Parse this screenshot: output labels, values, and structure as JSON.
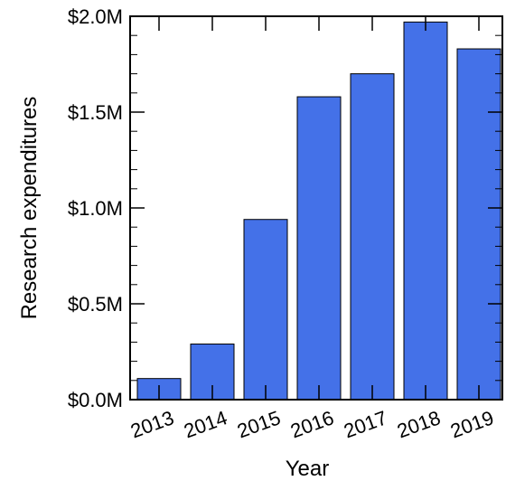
{
  "chart_data": {
    "type": "bar",
    "xlabel": "Year",
    "ylabel": "Research expenditures",
    "categories": [
      "2013",
      "2014",
      "2015",
      "2016",
      "2017",
      "2018",
      "2019"
    ],
    "values": [
      0.11,
      0.29,
      0.94,
      1.58,
      1.7,
      1.97,
      1.83
    ],
    "value_unit": "$M",
    "ylim": [
      0,
      2.0
    ],
    "yticks": [
      0.0,
      0.5,
      1.0,
      1.5,
      2.0
    ],
    "ytick_labels": [
      "$0.0M",
      "$0.5M",
      "$1.0M",
      "$1.5M",
      "$2.0M"
    ],
    "bar_color": "#4471e8",
    "grid": false,
    "legend": "none"
  }
}
